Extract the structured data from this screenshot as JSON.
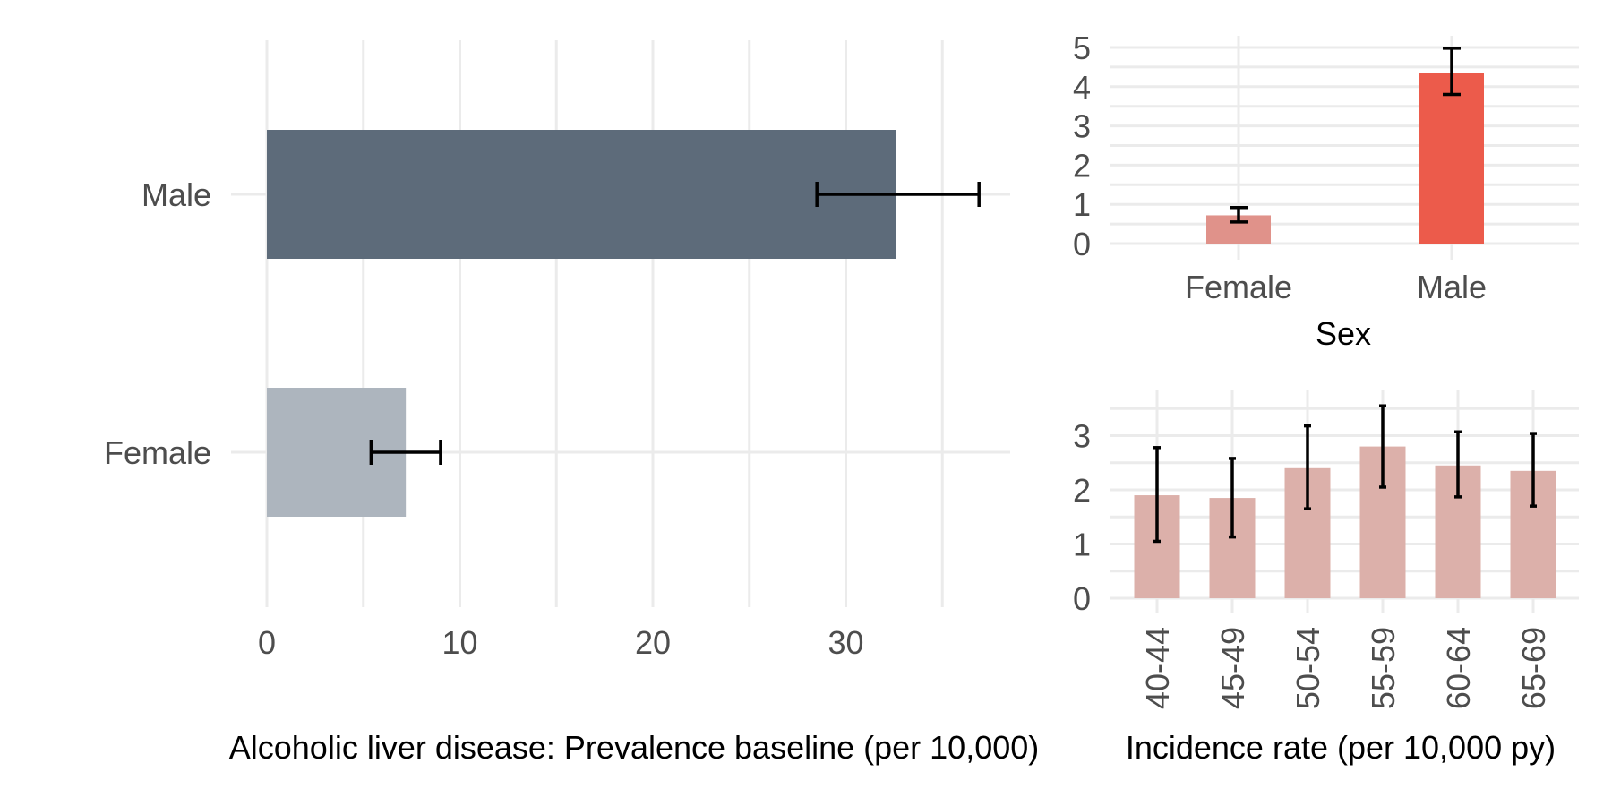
{
  "chart_data": [
    {
      "id": "prevalence",
      "type": "bar",
      "orientation": "horizontal",
      "categories": [
        "Female",
        "Male"
      ],
      "values": [
        7.2,
        32.6
      ],
      "ci_low": [
        5.4,
        28.5
      ],
      "ci_high": [
        9.0,
        36.9
      ],
      "colors": [
        "#adb5be",
        "#5d6b7a"
      ],
      "xlim": [
        0,
        38.5
      ],
      "xticks": [
        "0",
        "10",
        "20",
        "30"
      ],
      "xlabel": "Alcoholic liver disease: Prevalence baseline (per 10,000)",
      "ylabel": ""
    },
    {
      "id": "incidence_sex",
      "type": "bar",
      "categories": [
        "Female",
        "Male"
      ],
      "values": [
        0.72,
        4.35
      ],
      "ci_low": [
        0.55,
        3.8
      ],
      "ci_high": [
        0.92,
        4.98
      ],
      "colors": [
        "#e0928a",
        "#ec5b4b"
      ],
      "ylim": [
        0,
        5.2
      ],
      "yticks": [
        "0",
        "1",
        "2",
        "3",
        "4",
        "5"
      ],
      "xlabel": "Sex",
      "ylabel": ""
    },
    {
      "id": "incidence_age",
      "type": "bar",
      "categories": [
        "40-44",
        "45-49",
        "50-54",
        "55-59",
        "60-64",
        "65-69"
      ],
      "values": [
        1.9,
        1.85,
        2.4,
        2.8,
        2.45,
        2.35
      ],
      "ci_low": [
        1.05,
        1.13,
        1.65,
        2.05,
        1.87,
        1.7
      ],
      "ci_high": [
        2.78,
        2.58,
        3.18,
        3.55,
        3.07,
        3.04
      ],
      "colors": [
        "#dcb0aa"
      ],
      "ylim": [
        0,
        3.8
      ],
      "yticks": [
        "0",
        "1",
        "2",
        "3"
      ],
      "xlabel": "Incidence rate (per 10,000 py)",
      "ylabel": ""
    }
  ]
}
